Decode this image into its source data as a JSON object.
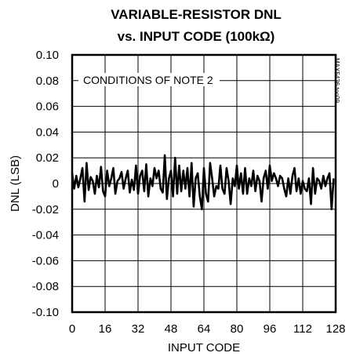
{
  "chart_data": {
    "type": "line",
    "title_line1": "VARIABLE-RESISTOR DNL",
    "title_line2": "vs. INPUT CODE (100kΩ)",
    "xlabel": "INPUT CODE",
    "ylabel": "DNL (LSB)",
    "xlim": [
      0,
      128
    ],
    "ylim": [
      -0.1,
      0.1
    ],
    "x_ticks": [
      0,
      16,
      32,
      48,
      64,
      80,
      96,
      112,
      128
    ],
    "y_ticks": [
      0.1,
      0.08,
      0.06,
      0.04,
      0.02,
      0,
      -0.02,
      -0.04,
      -0.06,
      -0.08,
      -0.1
    ],
    "y_tick_labels": [
      "0.10",
      "0.08",
      "0.06",
      "0.04",
      "0.02",
      "0",
      "-0.02",
      "-0.04",
      "-0.06",
      "-0.08",
      "-0.10"
    ],
    "grid": true,
    "annotation": "CONDITIONS OF NOTE 2",
    "side_note": "MAX5436 toc09",
    "series": [
      {
        "x": [
          0,
          1,
          2,
          3,
          4,
          5,
          6,
          7,
          8,
          9,
          10,
          11,
          12,
          13,
          14,
          15,
          16,
          17,
          18,
          19,
          20,
          21,
          22,
          23,
          24,
          25,
          26,
          27,
          28,
          29,
          30,
          31,
          32,
          33,
          34,
          35,
          36,
          37,
          38,
          39,
          40,
          41,
          42,
          43,
          44,
          45,
          46,
          47,
          48,
          49,
          50,
          51,
          52,
          53,
          54,
          55,
          56,
          57,
          58,
          59,
          60,
          61,
          62,
          63,
          64,
          65,
          66,
          67,
          68,
          69,
          70,
          71,
          72,
          73,
          74,
          75,
          76,
          77,
          78,
          79,
          80,
          81,
          82,
          83,
          84,
          85,
          86,
          87,
          88,
          89,
          90,
          91,
          92,
          93,
          94,
          95,
          96,
          97,
          98,
          99,
          100,
          101,
          102,
          103,
          104,
          105,
          106,
          107,
          108,
          109,
          110,
          111,
          112,
          113,
          114,
          115,
          116,
          117,
          118,
          119,
          120,
          121,
          122,
          123,
          124,
          125,
          126,
          127
        ],
        "y": [
          0.008,
          -0.004,
          0.006,
          -0.003,
          0.004,
          0.012,
          -0.014,
          0.016,
          -0.005,
          0.005,
          0.002,
          -0.008,
          0.006,
          -0.003,
          0.013,
          -0.006,
          -0.01,
          0.01,
          -0.002,
          0.004,
          0.012,
          -0.008,
          0.002,
          0.004,
          0.009,
          -0.004,
          0.004,
          0.01,
          -0.007,
          0.003,
          -0.005,
          0.014,
          -0.008,
          0.006,
          0.01,
          -0.006,
          0.015,
          -0.01,
          0.004,
          -0.002,
          0.012,
          0.004,
          0.01,
          -0.004,
          -0.007,
          0.022,
          -0.012,
          0.004,
          0.01,
          -0.01,
          0.02,
          -0.008,
          0.014,
          -0.006,
          0.01,
          -0.004,
          0.012,
          -0.01,
          0.016,
          -0.018,
          0.004,
          0.008,
          -0.01,
          -0.02,
          0.012,
          -0.008,
          -0.014,
          0.016,
          0.004,
          -0.01,
          -0.002,
          -0.004,
          0.014,
          -0.004,
          -0.008,
          0.012,
          0.002,
          -0.016,
          0.004,
          -0.002,
          0.014,
          -0.004,
          0.008,
          -0.008,
          0.012,
          -0.008,
          0.004,
          -0.002,
          0.01,
          -0.006,
          0.006,
          0.002,
          -0.014,
          0.004,
          0.01,
          -0.004,
          0.014,
          0.002,
          0.008,
          0.004,
          -0.002,
          0.006,
          0.004,
          -0.004,
          -0.01,
          0.004,
          -0.008,
          0.006,
          0.012,
          -0.006,
          0.004,
          -0.008,
          0.002,
          -0.004,
          -0.006,
          0.004,
          -0.016,
          0.012,
          -0.008,
          0.004,
          0.002,
          -0.004,
          0.006,
          -0.002,
          0.004,
          0.008,
          -0.02,
          0.004
        ]
      }
    ]
  }
}
